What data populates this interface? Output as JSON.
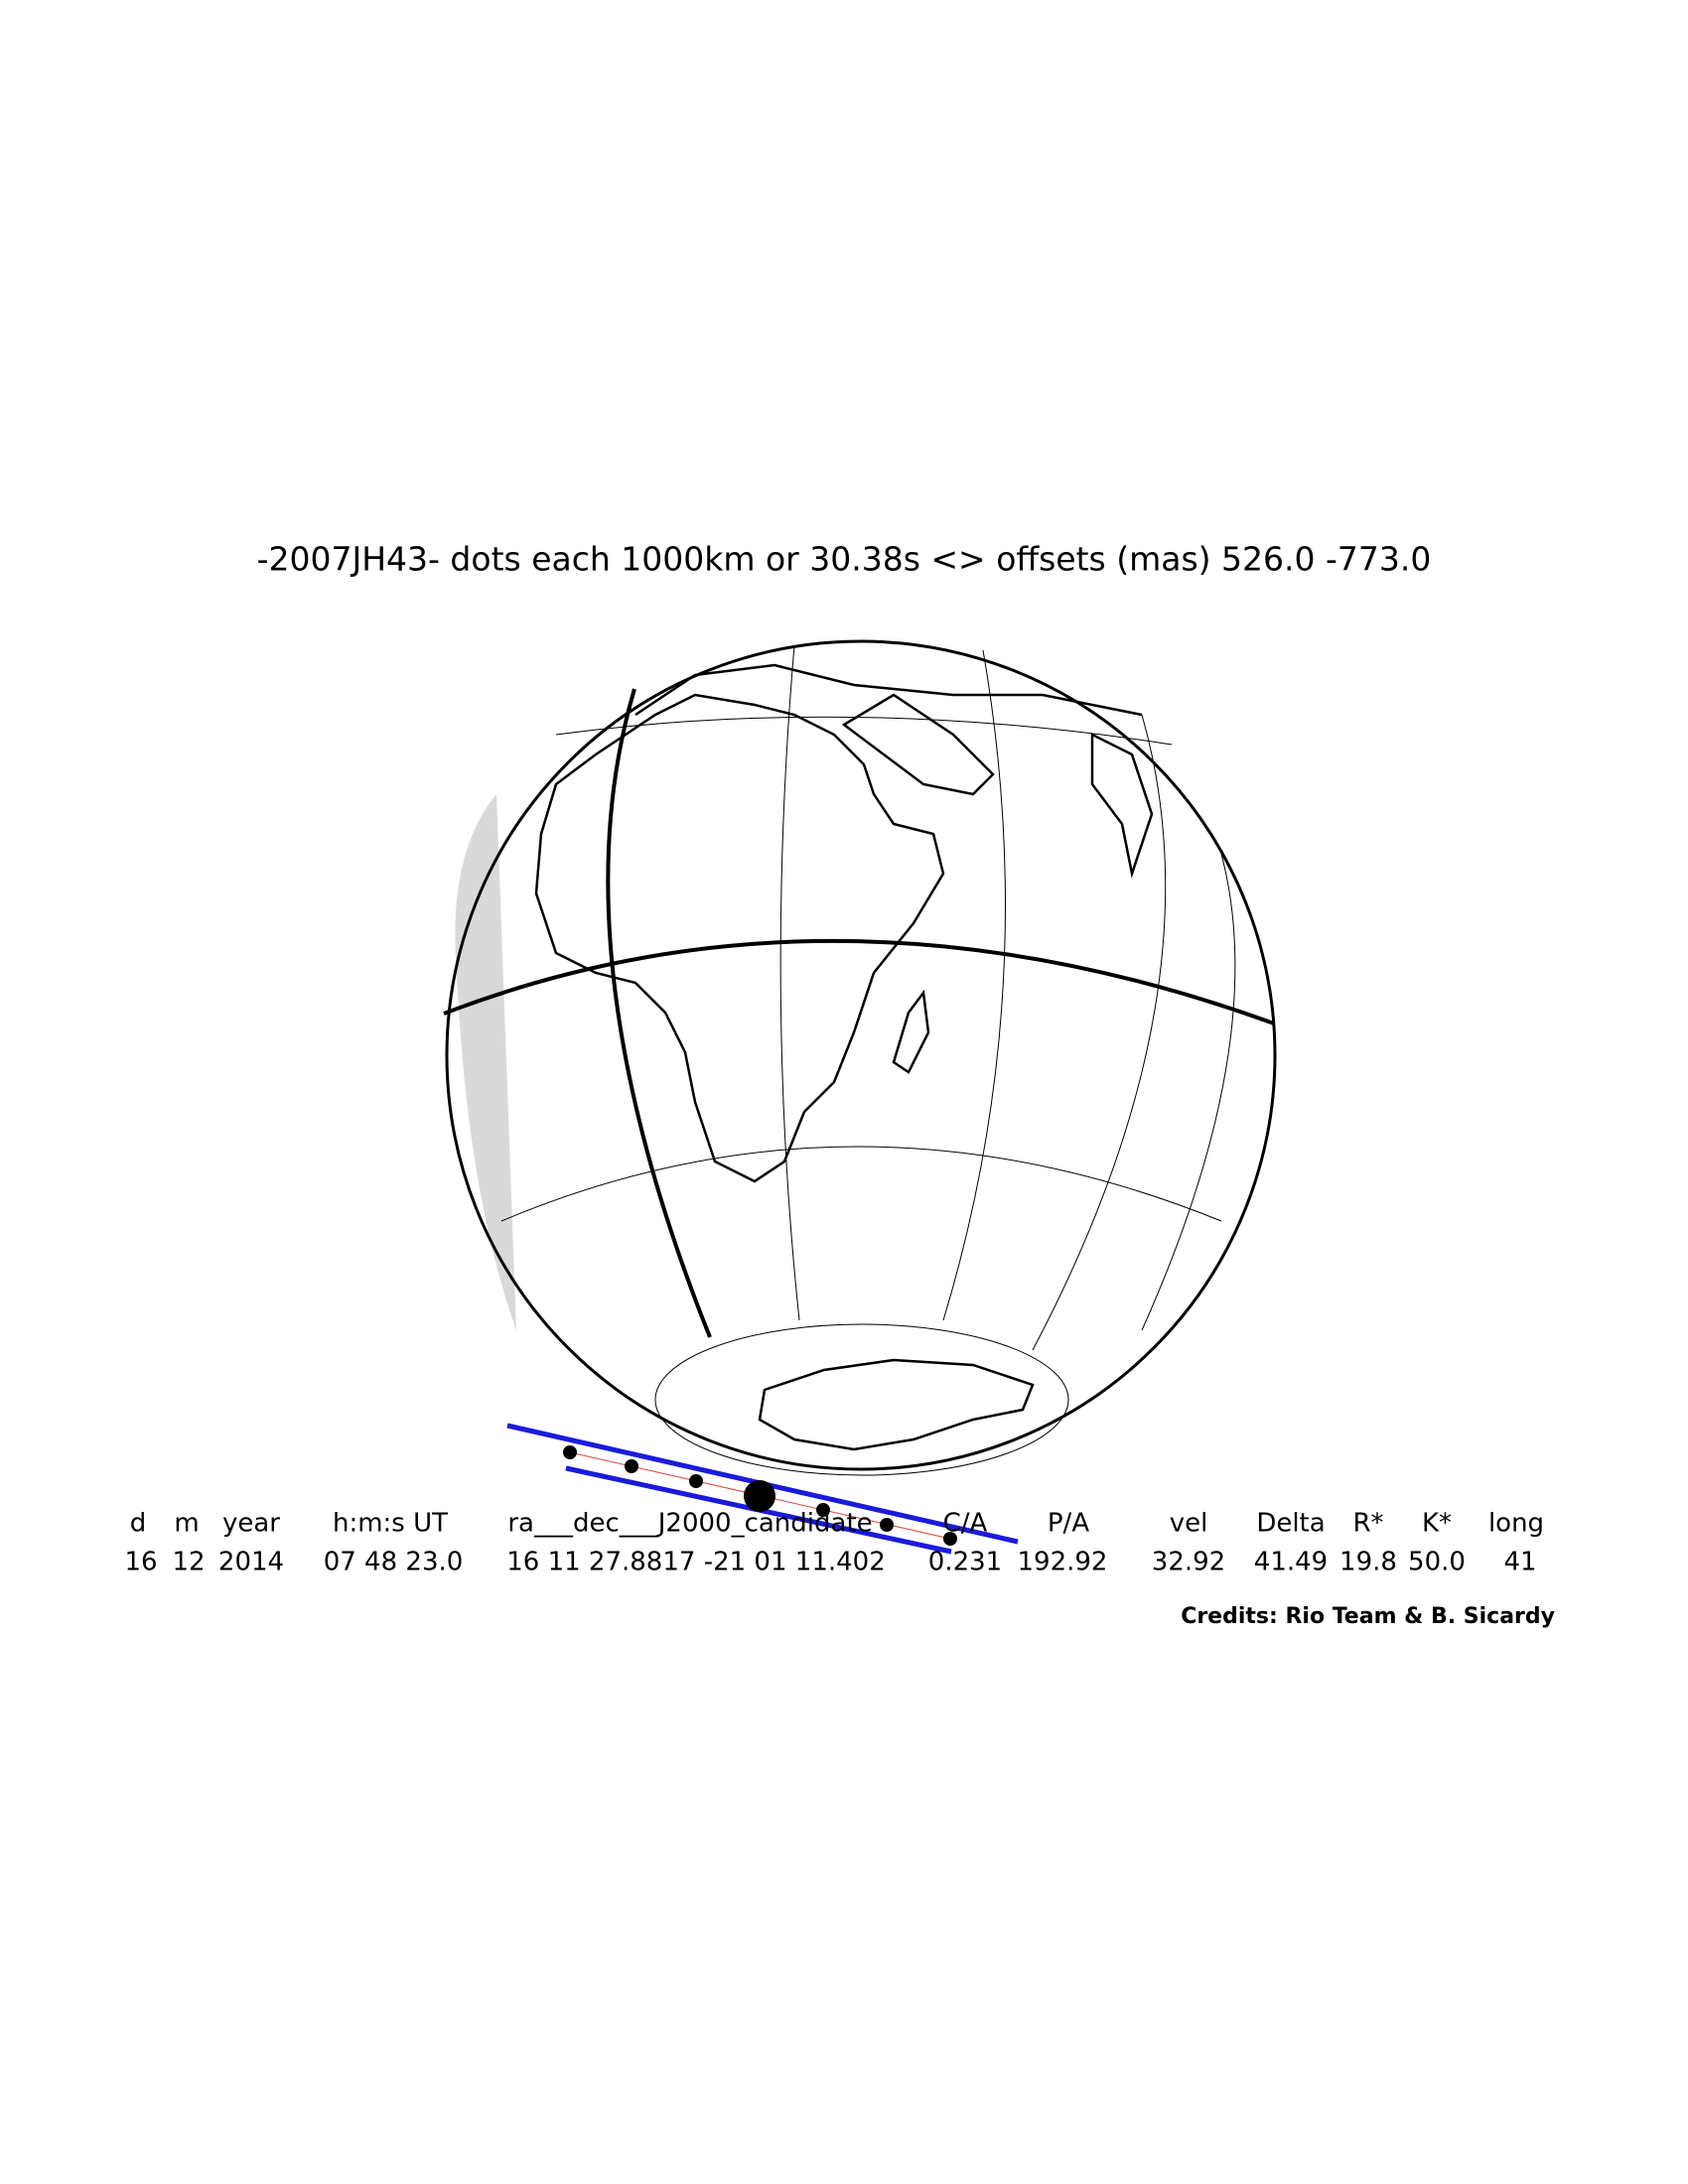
{
  "title": "-2007JH43- dots each 1000km or 30.38s <> offsets (mas)  526.0 -773.0",
  "table": {
    "header": [
      "d",
      "m",
      "year",
      "h:m:s UT",
      "ra___dec___J2000_candidate",
      "C/A",
      "P/A",
      "vel",
      "Delta",
      "R*",
      "K*",
      "long"
    ],
    "rows": [
      [
        "16",
        "12",
        "2014",
        "07 48 23.0",
        "16 11 27.8817 -21 01 11.402",
        "0.231",
        "192.92",
        "32.92",
        "41.49",
        "19.8",
        "50.0",
        "41"
      ]
    ]
  },
  "credits": "Credits: Rio Team & B. Sicardy"
}
